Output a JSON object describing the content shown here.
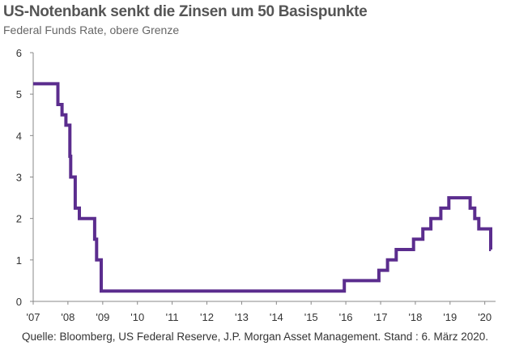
{
  "chart_data": {
    "type": "line",
    "title": "US-Notenbank senkt die Zinsen um 50 Basispunkte",
    "subtitle": "Federal Funds Rate, obere Grenze",
    "source": "Quelle: Bloomberg, US Federal Reserve, J.P. Morgan Asset Management. Stand : 6. März 2020.",
    "xlabel": "",
    "ylabel": "",
    "ylim": [
      0,
      6
    ],
    "xlim": [
      "2007-01-01",
      "2020-03-06"
    ],
    "y_ticks": [
      "0",
      "1",
      "2",
      "3",
      "4",
      "5",
      "6"
    ],
    "x_ticks": [
      {
        "label": "'07",
        "date": "2007-01-01"
      },
      {
        "label": "'08",
        "date": "2008-01-01"
      },
      {
        "label": "'09",
        "date": "2009-01-01"
      },
      {
        "label": "'10",
        "date": "2010-01-01"
      },
      {
        "label": "'11",
        "date": "2011-01-01"
      },
      {
        "label": "'12",
        "date": "2012-01-01"
      },
      {
        "label": "'13",
        "date": "2013-01-01"
      },
      {
        "label": "'14",
        "date": "2014-01-01"
      },
      {
        "label": "'15",
        "date": "2015-01-01"
      },
      {
        "label": "'16",
        "date": "2016-01-01"
      },
      {
        "label": "'17",
        "date": "2017-01-01"
      },
      {
        "label": "'18",
        "date": "2018-01-01"
      },
      {
        "label": "'19",
        "date": "2019-01-01"
      },
      {
        "label": "'20",
        "date": "2020-01-01"
      }
    ],
    "grid": false,
    "line_color": "#5b2d8e",
    "series": [
      {
        "step": "post",
        "points": [
          {
            "date": "2007-01-01",
            "value": 5.25
          },
          {
            "date": "2007-09-18",
            "value": 4.75
          },
          {
            "date": "2007-10-31",
            "value": 4.5
          },
          {
            "date": "2007-12-11",
            "value": 4.25
          },
          {
            "date": "2008-01-22",
            "value": 3.5
          },
          {
            "date": "2008-01-30",
            "value": 3.0
          },
          {
            "date": "2008-03-18",
            "value": 2.25
          },
          {
            "date": "2008-04-30",
            "value": 2.0
          },
          {
            "date": "2008-10-08",
            "value": 1.5
          },
          {
            "date": "2008-10-29",
            "value": 1.0
          },
          {
            "date": "2008-12-16",
            "value": 0.25
          },
          {
            "date": "2015-12-16",
            "value": 0.5
          },
          {
            "date": "2016-12-14",
            "value": 0.75
          },
          {
            "date": "2017-03-15",
            "value": 1.0
          },
          {
            "date": "2017-06-14",
            "value": 1.25
          },
          {
            "date": "2017-12-13",
            "value": 1.5
          },
          {
            "date": "2018-03-21",
            "value": 1.75
          },
          {
            "date": "2018-06-13",
            "value": 2.0
          },
          {
            "date": "2018-09-26",
            "value": 2.25
          },
          {
            "date": "2018-12-19",
            "value": 2.5
          },
          {
            "date": "2019-07-31",
            "value": 2.25
          },
          {
            "date": "2019-09-18",
            "value": 2.0
          },
          {
            "date": "2019-10-30",
            "value": 1.75
          },
          {
            "date": "2020-03-03",
            "value": 1.25
          },
          {
            "date": "2020-03-06",
            "value": 1.25
          }
        ]
      }
    ]
  }
}
